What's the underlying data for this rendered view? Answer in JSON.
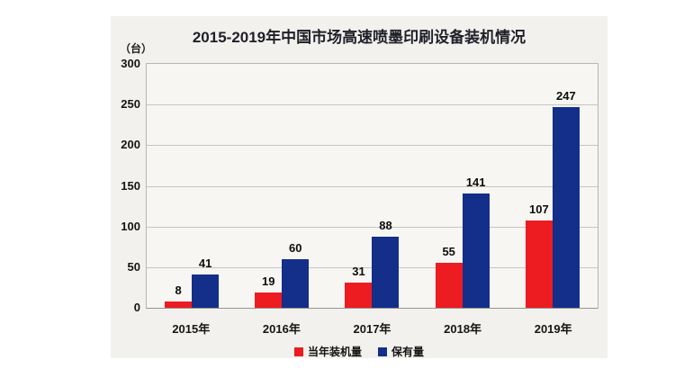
{
  "page": {
    "background": "#ffffff",
    "panel_background": "#f2f1ee"
  },
  "chart_data": {
    "type": "bar",
    "title": "2015-2019年中国市场高速喷墨印刷设备装机情况",
    "ylabel": "（台）",
    "categories": [
      "2015年",
      "2016年",
      "2017年",
      "2018年",
      "2019年"
    ],
    "series": [
      {
        "key": "installed",
        "name": "当年装机量",
        "color": "#ec1c21",
        "values": [
          8,
          19,
          31,
          55,
          107
        ]
      },
      {
        "key": "owned",
        "name": "保有量",
        "color": "#132f8a",
        "values": [
          41,
          60,
          88,
          141,
          247
        ]
      }
    ],
    "ylim": [
      0,
      300
    ],
    "yticks": [
      0,
      50,
      100,
      150,
      200,
      250,
      300
    ],
    "grid": true,
    "legend_position": "bottom",
    "colors": {
      "series_installed": "#ec1c21",
      "series_owned": "#132f8a",
      "gridline": "#c7c5c2",
      "plot_background": "#f7f6f3",
      "text": "#141414"
    }
  }
}
